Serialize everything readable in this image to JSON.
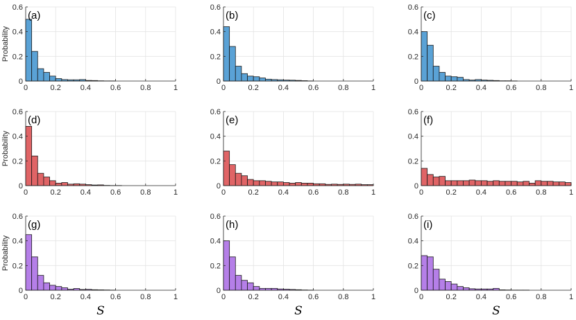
{
  "chart_data": {
    "type": "bar",
    "layout": "3x3 grid of histograms",
    "bin_width": 0.04,
    "xlim": [
      0,
      1
    ],
    "ylim": [
      0,
      0.6
    ],
    "xticks": [
      "0",
      "0.2",
      "0.4",
      "0.6",
      "0.8",
      "1"
    ],
    "yticks": [
      "0",
      "0.2",
      "0.4",
      "0.6"
    ],
    "xlabel": "S",
    "ylabel": "Probability",
    "grid": true,
    "panels": [
      {
        "label": "(a)",
        "color": "#5aa2d6",
        "values": [
          0.5,
          0.24,
          0.1,
          0.07,
          0.04,
          0.02,
          0.012,
          0.01,
          0.01,
          0.012,
          0.005,
          0.004,
          0.002,
          0.001,
          0.001,
          0,
          0,
          0,
          0,
          0,
          0,
          0,
          0,
          0,
          0
        ]
      },
      {
        "label": "(b)",
        "color": "#5aa2d6",
        "values": [
          0.44,
          0.28,
          0.12,
          0.06,
          0.04,
          0.035,
          0.025,
          0.015,
          0.012,
          0.01,
          0.008,
          0.007,
          0.005,
          0.003,
          0.001,
          0,
          0,
          0,
          0,
          0,
          0,
          0,
          0,
          0,
          0
        ]
      },
      {
        "label": "(c)",
        "color": "#5aa2d6",
        "values": [
          0.4,
          0.29,
          0.12,
          0.07,
          0.04,
          0.035,
          0.03,
          0.012,
          0.008,
          0.012,
          0.008,
          0.006,
          0.004,
          0.002,
          0.002,
          0.001,
          0,
          0,
          0,
          0,
          0,
          0,
          0,
          0,
          0
        ]
      },
      {
        "label": "(d)",
        "color": "#e06466",
        "values": [
          0.48,
          0.24,
          0.1,
          0.07,
          0.04,
          0.02,
          0.025,
          0.012,
          0.015,
          0.012,
          0.008,
          0.005,
          0.006,
          0.002,
          0.001,
          0.001,
          0,
          0,
          0,
          0,
          0,
          0,
          0,
          0,
          0
        ]
      },
      {
        "label": "(e)",
        "color": "#e06466",
        "values": [
          0.28,
          0.17,
          0.1,
          0.08,
          0.05,
          0.04,
          0.04,
          0.035,
          0.03,
          0.03,
          0.025,
          0.02,
          0.025,
          0.02,
          0.02,
          0.015,
          0.015,
          0.01,
          0.012,
          0.01,
          0.012,
          0.01,
          0.012,
          0.008,
          0.008
        ]
      },
      {
        "label": "(f)",
        "color": "#e06466",
        "values": [
          0.14,
          0.09,
          0.07,
          0.075,
          0.04,
          0.04,
          0.04,
          0.04,
          0.045,
          0.04,
          0.04,
          0.035,
          0.04,
          0.035,
          0.035,
          0.035,
          0.03,
          0.035,
          0.02,
          0.04,
          0.035,
          0.035,
          0.03,
          0.03,
          0.025
        ]
      },
      {
        "label": "(g)",
        "color": "#b57fe8",
        "values": [
          0.45,
          0.27,
          0.12,
          0.06,
          0.04,
          0.03,
          0.02,
          0.008,
          0.014,
          0.006,
          0.007,
          0.004,
          0.003,
          0.002,
          0.001,
          0,
          0,
          0,
          0,
          0,
          0,
          0,
          0,
          0,
          0
        ]
      },
      {
        "label": "(h)",
        "color": "#b57fe8",
        "values": [
          0.4,
          0.27,
          0.12,
          0.08,
          0.06,
          0.03,
          0.015,
          0.015,
          0.015,
          0.01,
          0.008,
          0.006,
          0.004,
          0.002,
          0.001,
          0,
          0,
          0,
          0,
          0,
          0,
          0,
          0,
          0,
          0
        ]
      },
      {
        "label": "(i)",
        "color": "#b57fe8",
        "values": [
          0.28,
          0.27,
          0.17,
          0.09,
          0.07,
          0.05,
          0.03,
          0.02,
          0.012,
          0.01,
          0.01,
          0.01,
          0.015,
          0.003,
          0.002,
          0.001,
          0.001,
          0.001,
          0,
          0,
          0,
          0,
          0,
          0,
          0
        ]
      }
    ]
  }
}
